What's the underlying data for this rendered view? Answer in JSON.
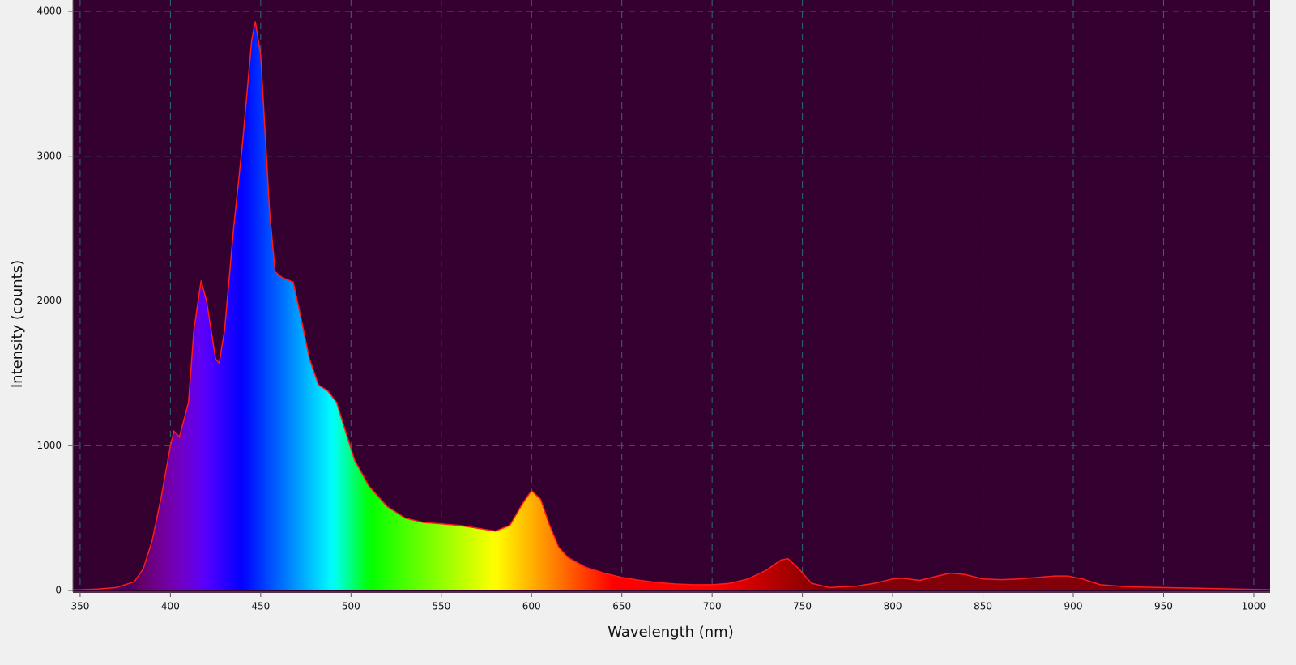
{
  "chart_data": {
    "type": "area",
    "x_label": "Wavelength (nm)",
    "y_label": "Intensity (counts)",
    "x": [
      346,
      350,
      360,
      370,
      380,
      385,
      390,
      395,
      400,
      402,
      405,
      410,
      413,
      417,
      420,
      425,
      427,
      430,
      435,
      440,
      445,
      447,
      450,
      455,
      458,
      462,
      468,
      472,
      477,
      482,
      487,
      492,
      497,
      502,
      510,
      520,
      530,
      540,
      550,
      560,
      570,
      580,
      588,
      595,
      600,
      605,
      610,
      615,
      620,
      630,
      640,
      650,
      660,
      670,
      680,
      690,
      700,
      710,
      720,
      730,
      738,
      742,
      748,
      755,
      765,
      780,
      790,
      800,
      805,
      815,
      825,
      832,
      840,
      850,
      860,
      870,
      880,
      890,
      897,
      905,
      915,
      930,
      950,
      970,
      990,
      1009
    ],
    "values": [
      5,
      5,
      10,
      20,
      60,
      150,
      350,
      650,
      1000,
      1100,
      1060,
      1300,
      1800,
      2140,
      2000,
      1600,
      1570,
      1800,
      2500,
      3100,
      3800,
      3930,
      3700,
      2600,
      2200,
      2160,
      2130,
      1900,
      1600,
      1420,
      1380,
      1300,
      1100,
      900,
      720,
      580,
      500,
      470,
      460,
      450,
      430,
      410,
      450,
      600,
      690,
      630,
      450,
      300,
      230,
      160,
      120,
      90,
      70,
      55,
      45,
      40,
      40,
      50,
      80,
      140,
      210,
      220,
      150,
      50,
      20,
      30,
      50,
      80,
      85,
      70,
      100,
      120,
      110,
      80,
      75,
      80,
      90,
      100,
      100,
      80,
      40,
      25,
      20,
      15,
      10,
      5
    ],
    "line_color": "#ff1a1a",
    "background": "#330030",
    "grid": true,
    "grid_color": "#2f6b70",
    "xlim": [
      346,
      1009
    ],
    "xticks": [
      350,
      400,
      450,
      500,
      550,
      600,
      650,
      700,
      750,
      800,
      850,
      900,
      950,
      1000
    ],
    "ylim": [
      0,
      4000
    ],
    "yticks": [
      0,
      1000,
      2000,
      3000,
      4000
    ]
  }
}
